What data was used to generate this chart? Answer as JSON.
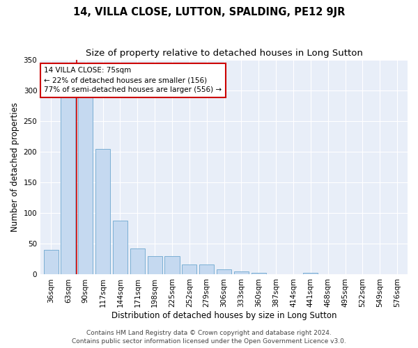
{
  "title": "14, VILLA CLOSE, LUTTON, SPALDING, PE12 9JR",
  "subtitle": "Size of property relative to detached houses in Long Sutton",
  "xlabel": "Distribution of detached houses by size in Long Sutton",
  "ylabel": "Number of detached properties",
  "categories": [
    "36sqm",
    "63sqm",
    "90sqm",
    "117sqm",
    "144sqm",
    "171sqm",
    "198sqm",
    "225sqm",
    "252sqm",
    "279sqm",
    "306sqm",
    "333sqm",
    "360sqm",
    "387sqm",
    "414sqm",
    "441sqm",
    "468sqm",
    "495sqm",
    "522sqm",
    "549sqm",
    "576sqm"
  ],
  "values": [
    40,
    292,
    292,
    205,
    88,
    42,
    30,
    30,
    16,
    16,
    8,
    5,
    3,
    0,
    0,
    3,
    0,
    0,
    0,
    0,
    0
  ],
  "bar_color": "#c5d9f0",
  "bar_edge_color": "#7bafd4",
  "vline_x": 1.5,
  "vline_color": "#cc0000",
  "annotation_text": "14 VILLA CLOSE: 75sqm\n← 22% of detached houses are smaller (156)\n77% of semi-detached houses are larger (556) →",
  "annotation_box_color": "#ffffff",
  "annotation_box_edge_color": "#cc0000",
  "ylim": [
    0,
    350
  ],
  "yticks": [
    0,
    50,
    100,
    150,
    200,
    250,
    300,
    350
  ],
  "axes_background": "#e8eef8",
  "footer_line1": "Contains HM Land Registry data © Crown copyright and database right 2024.",
  "footer_line2": "Contains public sector information licensed under the Open Government Licence v3.0.",
  "title_fontsize": 10.5,
  "subtitle_fontsize": 9.5,
  "xlabel_fontsize": 8.5,
  "ylabel_fontsize": 8.5,
  "tick_fontsize": 7.5,
  "footer_fontsize": 6.5,
  "annot_fontsize": 7.5
}
